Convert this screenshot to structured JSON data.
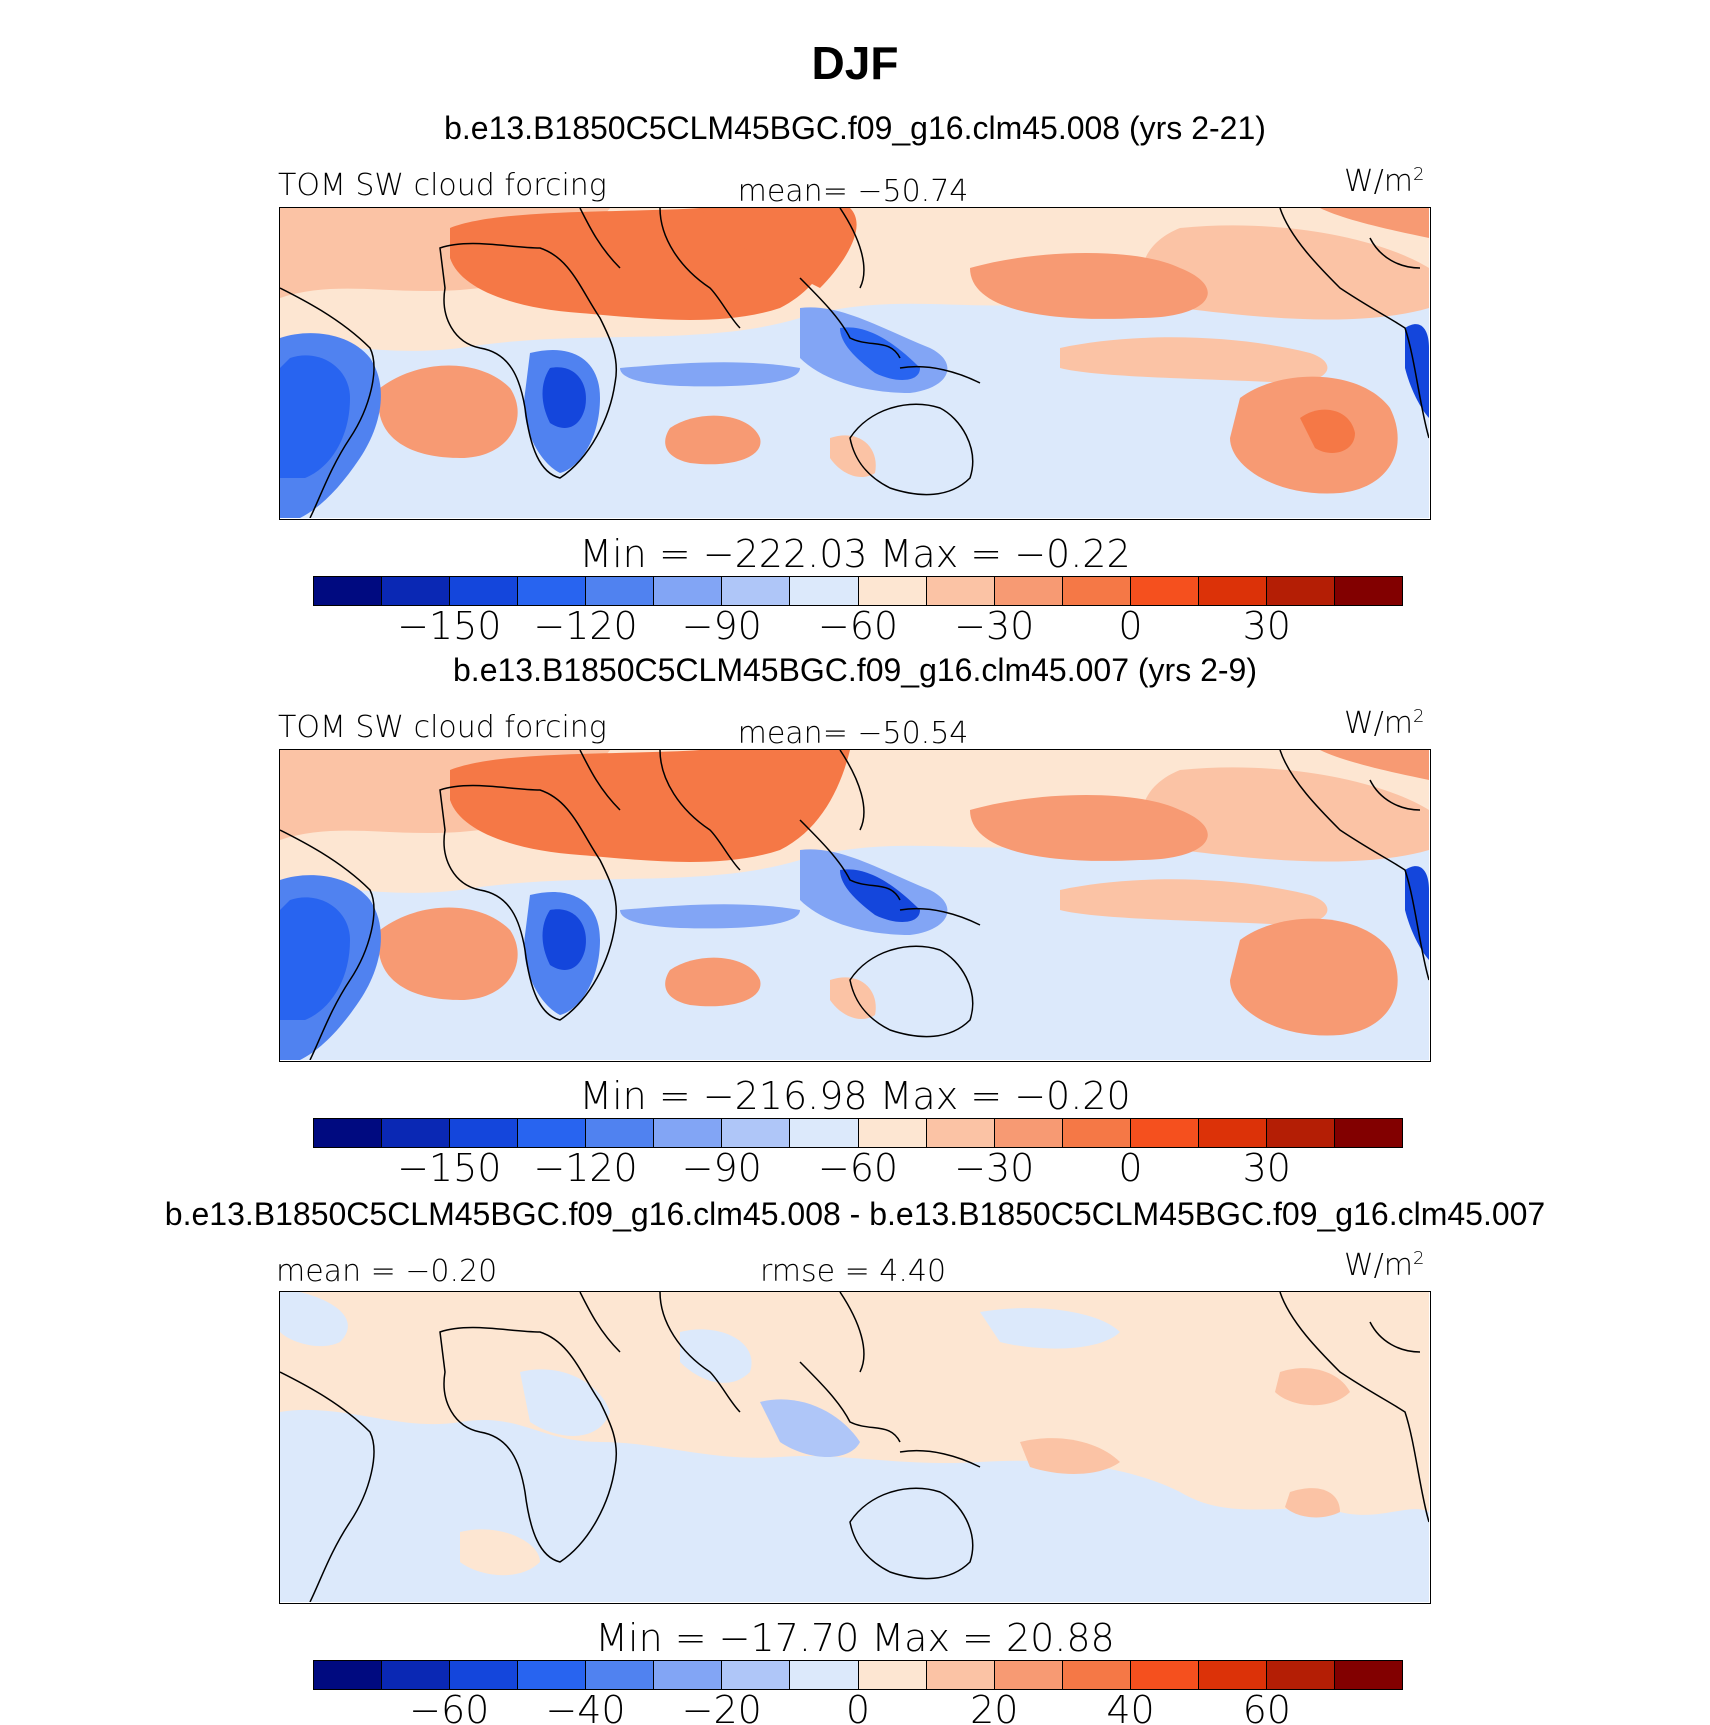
{
  "figure": {
    "title": "DJF"
  },
  "panels": [
    {
      "id": "case1",
      "title": "b.e13.B1850C5CLM45BGC.f09_g16.clm45.008 (yrs 2-21)",
      "left_label": "TOM SW cloud forcing",
      "center_label": "mean= −50.74",
      "units_base": "W/m",
      "units_exp": "2",
      "stats": "Min = −222.03 Max = −0.22",
      "colorbar_ticks": [
        "−150",
        "−120",
        "−90",
        "−60",
        "−30",
        "0",
        "30"
      ]
    },
    {
      "id": "case2",
      "title": "b.e13.B1850C5CLM45BGC.f09_g16.clm45.007 (yrs 2-9)",
      "left_label": "TOM SW cloud forcing",
      "center_label": "mean= −50.54",
      "units_base": "W/m",
      "units_exp": "2",
      "stats": "Min = −216.98 Max = −0.20",
      "colorbar_ticks": [
        "−150",
        "−120",
        "−90",
        "−60",
        "−30",
        "0",
        "30"
      ]
    },
    {
      "id": "diff",
      "title": "b.e13.B1850C5CLM45BGC.f09_g16.clm45.008 - b.e13.B1850C5CLM45BGC.f09_g16.clm45.007",
      "left_label": "mean = −0.20",
      "center_label": "rmse = 4.40",
      "units_base": "W/m",
      "units_exp": "2",
      "stats": "Min = −17.70 Max = 20.88",
      "colorbar_ticks": [
        "−60",
        "−40",
        "−20",
        "0",
        "20",
        "40",
        "60"
      ]
    }
  ],
  "colormap": [
    "#000a80",
    "#0a28b4",
    "#1446dc",
    "#2864f0",
    "#5082f0",
    "#82a5f5",
    "#afc6f8",
    "#dce9fb",
    "#fde6d2",
    "#fbc3a5",
    "#f79a73",
    "#f57846",
    "#f5501e",
    "#dc3208",
    "#b41e05",
    "#820000"
  ]
}
